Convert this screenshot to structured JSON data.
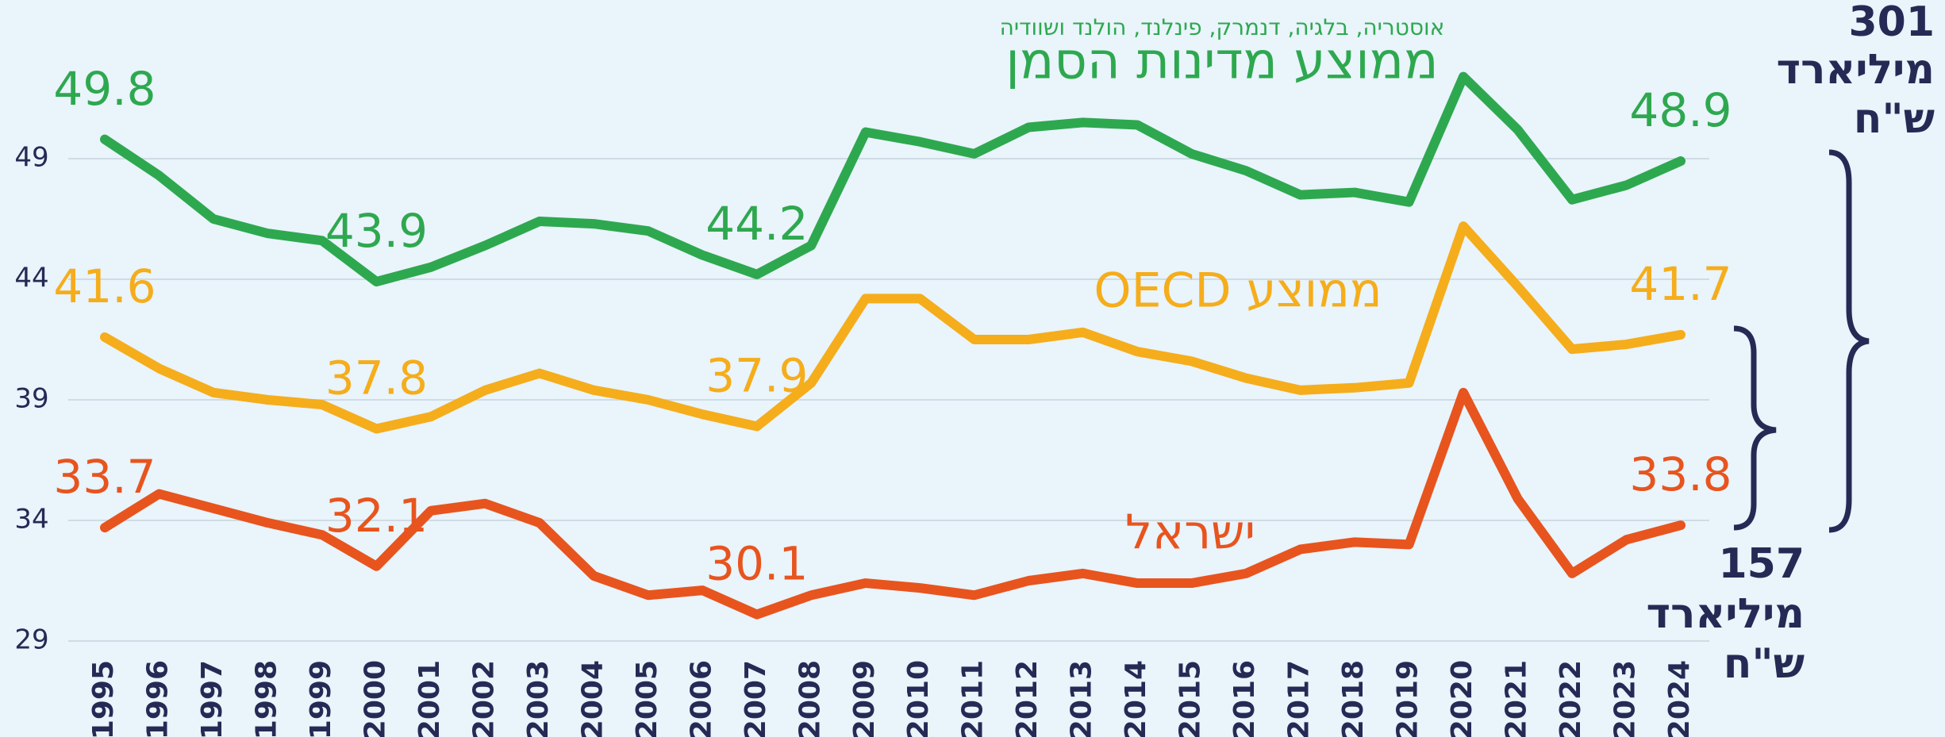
{
  "chart_data": {
    "type": "line",
    "subtitle": "אוסטריה, בלגיה, דנמרק, פינלנד, הולנד ושוודיה",
    "categories": [
      "1995",
      "1996",
      "1997",
      "1998",
      "1999",
      "2000",
      "2001",
      "2002",
      "2003",
      "2004",
      "2005",
      "2006",
      "2007",
      "2008",
      "2009",
      "2010",
      "2011",
      "2012",
      "2013",
      "2014",
      "2015",
      "2016",
      "2017",
      "2018",
      "2019",
      "2020",
      "2021",
      "2022",
      "2023",
      "2024"
    ],
    "series": [
      {
        "name": "ממוצע מדינות הסמן",
        "color": "#2ea84f",
        "values": [
          49.8,
          48.3,
          46.5,
          45.9,
          45.6,
          43.9,
          44.5,
          45.4,
          46.4,
          46.3,
          46.0,
          45.0,
          44.2,
          45.4,
          50.1,
          49.7,
          49.2,
          50.3,
          50.5,
          50.4,
          49.2,
          48.5,
          47.5,
          47.6,
          47.2,
          52.4,
          50.2,
          47.3,
          47.9,
          48.9
        ],
        "value_labels": [
          "49.8",
          null,
          null,
          null,
          null,
          "43.9",
          null,
          null,
          null,
          null,
          null,
          null,
          "44.2",
          null,
          null,
          null,
          null,
          null,
          null,
          null,
          null,
          null,
          null,
          null,
          null,
          null,
          null,
          null,
          null,
          "48.9"
        ]
      },
      {
        "name": "ממוצע OECD",
        "color": "#f5ad1b",
        "values": [
          41.6,
          40.3,
          39.3,
          39.0,
          38.8,
          37.8,
          38.3,
          39.4,
          40.1,
          39.4,
          39.0,
          38.4,
          37.9,
          39.7,
          43.2,
          43.2,
          41.5,
          41.5,
          41.8,
          41.0,
          40.6,
          39.9,
          39.4,
          39.5,
          39.7,
          46.2,
          43.7,
          41.1,
          41.3,
          41.7
        ],
        "value_labels": [
          "41.6",
          null,
          null,
          null,
          null,
          "37.8",
          null,
          null,
          null,
          null,
          null,
          null,
          "37.9",
          null,
          null,
          null,
          null,
          null,
          null,
          null,
          null,
          null,
          null,
          null,
          null,
          null,
          null,
          null,
          null,
          "41.7"
        ]
      },
      {
        "name": "ישראל",
        "color": "#e8541e",
        "values": [
          33.7,
          35.1,
          34.5,
          33.9,
          33.4,
          32.1,
          34.4,
          34.7,
          33.9,
          31.7,
          30.9,
          31.1,
          30.1,
          30.9,
          31.4,
          31.2,
          30.9,
          31.5,
          31.8,
          31.4,
          31.4,
          31.8,
          32.8,
          33.1,
          33.0,
          39.3,
          34.9,
          31.8,
          33.2,
          33.8
        ],
        "value_labels": [
          "33.7",
          null,
          null,
          null,
          null,
          "32.1",
          null,
          null,
          null,
          null,
          null,
          null,
          "30.1",
          null,
          null,
          null,
          null,
          null,
          null,
          null,
          null,
          null,
          null,
          null,
          null,
          null,
          null,
          null,
          null,
          "33.8"
        ]
      }
    ],
    "ylim": [
      29,
      54
    ],
    "yticks": [
      29,
      34,
      39,
      44,
      49
    ],
    "grid": true,
    "annotations": [
      {
        "lines": [
          "301",
          "מיליארד",
          "ש\"ח"
        ]
      },
      {
        "lines": [
          "157",
          "מיליארד",
          "ש\"ח"
        ]
      }
    ]
  }
}
